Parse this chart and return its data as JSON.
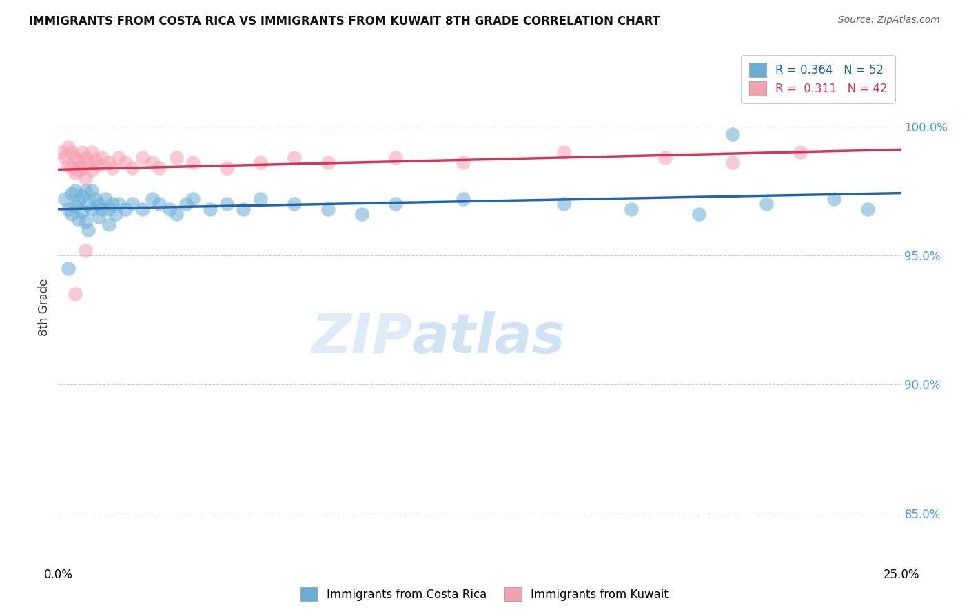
{
  "title": "IMMIGRANTS FROM COSTA RICA VS IMMIGRANTS FROM KUWAIT 8TH GRADE CORRELATION CHART",
  "source": "Source: ZipAtlas.com",
  "ylabel": "8th Grade",
  "yticks": [
    "85.0%",
    "90.0%",
    "95.0%",
    "100.0%"
  ],
  "ytick_vals": [
    0.85,
    0.9,
    0.95,
    1.0
  ],
  "xlim": [
    0.0,
    0.25
  ],
  "ylim": [
    0.83,
    1.03
  ],
  "legend_blue_label": "R = 0.364   N = 52",
  "legend_pink_label": "R =  0.311   N = 42",
  "blue_color": "#6aaed6",
  "pink_color": "#f4a0b0",
  "trendline_blue": "#2166ac",
  "trendline_pink": "#d6345a",
  "watermark_zip": "ZIP",
  "watermark_atlas": "atlas",
  "blue_x": [
    0.002,
    0.003,
    0.004,
    0.004,
    0.005,
    0.005,
    0.006,
    0.006,
    0.007,
    0.007,
    0.008,
    0.008,
    0.009,
    0.009,
    0.01,
    0.01,
    0.011,
    0.012,
    0.012,
    0.013,
    0.014,
    0.015,
    0.015,
    0.016,
    0.017,
    0.018,
    0.02,
    0.022,
    0.025,
    0.028,
    0.03,
    0.033,
    0.035,
    0.038,
    0.04,
    0.045,
    0.05,
    0.055,
    0.06,
    0.07,
    0.08,
    0.09,
    0.1,
    0.12,
    0.15,
    0.17,
    0.19,
    0.21,
    0.23,
    0.24,
    0.2,
    0.003
  ],
  "blue_y": [
    0.972,
    0.968,
    0.974,
    0.966,
    0.975,
    0.969,
    0.971,
    0.964,
    0.973,
    0.967,
    0.975,
    0.963,
    0.97,
    0.96,
    0.975,
    0.968,
    0.972,
    0.97,
    0.965,
    0.968,
    0.972,
    0.968,
    0.962,
    0.97,
    0.966,
    0.97,
    0.968,
    0.97,
    0.968,
    0.972,
    0.97,
    0.968,
    0.966,
    0.97,
    0.972,
    0.968,
    0.97,
    0.968,
    0.972,
    0.97,
    0.968,
    0.966,
    0.97,
    0.972,
    0.97,
    0.968,
    0.966,
    0.97,
    0.972,
    0.968,
    0.997,
    0.945
  ],
  "pink_x": [
    0.001,
    0.002,
    0.003,
    0.003,
    0.004,
    0.004,
    0.005,
    0.005,
    0.006,
    0.006,
    0.007,
    0.007,
    0.008,
    0.008,
    0.009,
    0.01,
    0.01,
    0.011,
    0.012,
    0.013,
    0.015,
    0.016,
    0.018,
    0.02,
    0.022,
    0.025,
    0.028,
    0.03,
    0.035,
    0.04,
    0.05,
    0.06,
    0.07,
    0.08,
    0.1,
    0.12,
    0.15,
    0.18,
    0.2,
    0.22,
    0.008,
    0.005
  ],
  "pink_y": [
    0.99,
    0.988,
    0.992,
    0.985,
    0.99,
    0.984,
    0.988,
    0.982,
    0.987,
    0.983,
    0.99,
    0.984,
    0.988,
    0.98,
    0.986,
    0.99,
    0.983,
    0.987,
    0.985,
    0.988,
    0.986,
    0.984,
    0.988,
    0.986,
    0.984,
    0.988,
    0.986,
    0.984,
    0.988,
    0.986,
    0.984,
    0.986,
    0.988,
    0.986,
    0.988,
    0.986,
    0.99,
    0.988,
    0.986,
    0.99,
    0.952,
    0.935
  ]
}
